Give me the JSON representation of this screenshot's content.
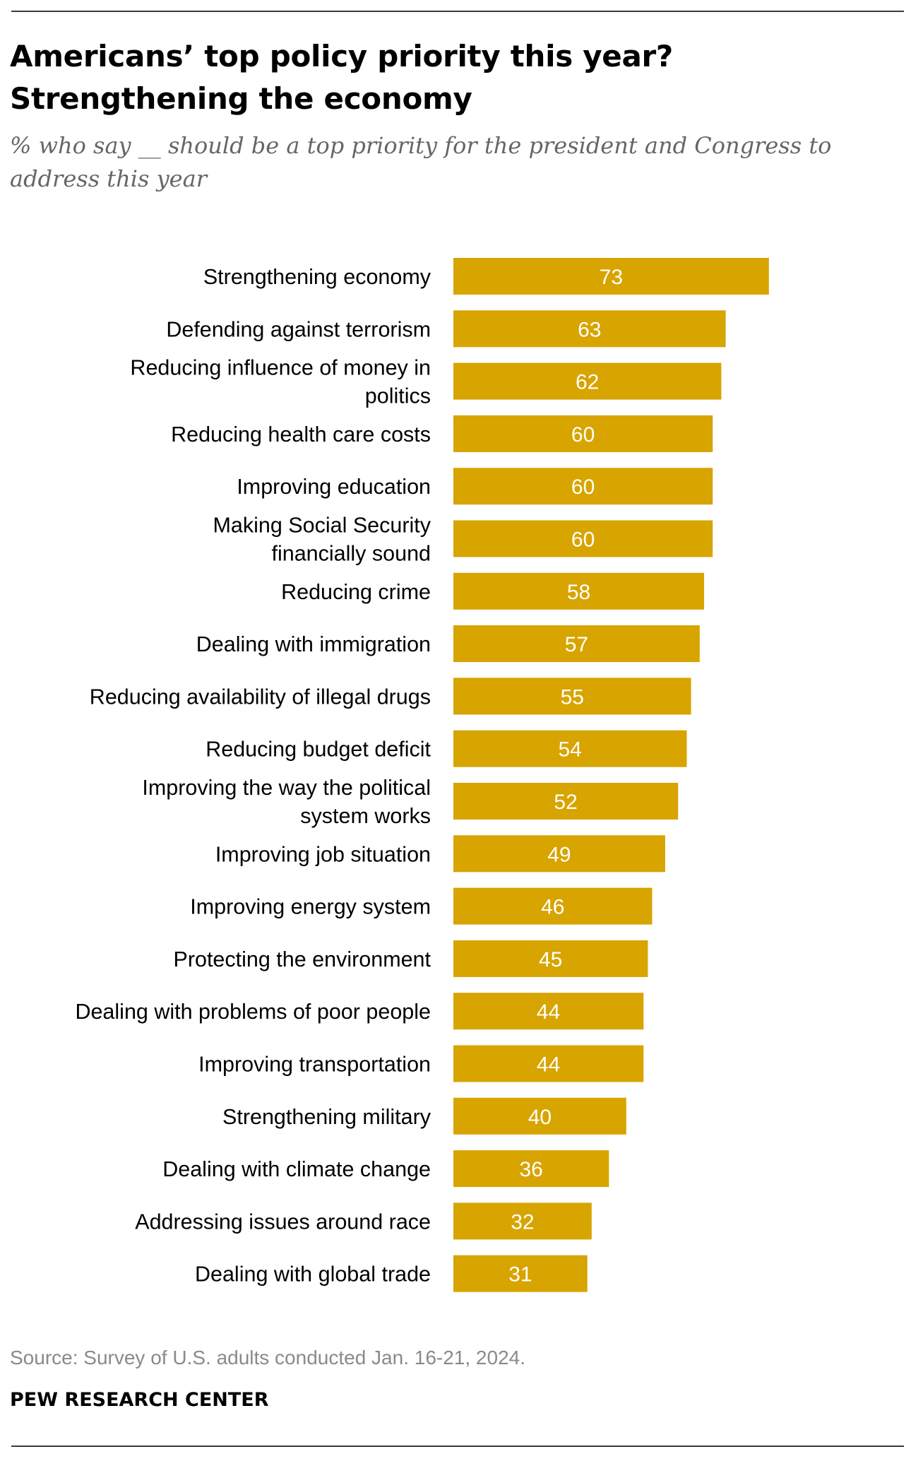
{
  "header": {
    "title": "Americans’ top policy priority this year? Strengthening the economy",
    "subtitle": "% who say __ should be a top priority for the president and Congress to address this year"
  },
  "footer": {
    "source": "Source: Survey of U.S. adults conducted Jan. 16-21, 2024.",
    "brand": "PEW RESEARCH CENTER"
  },
  "colors": {
    "bar": "#D7A400",
    "value_text": "#FFFFFF"
  },
  "chart_data": {
    "type": "bar",
    "orientation": "horizontal",
    "title": "Americans’ top policy priority this year? Strengthening the economy",
    "subtitle": "% who say __ should be a top priority for the president and Congress to address this year",
    "xlabel": "",
    "ylabel": "",
    "xlim": [
      0,
      100
    ],
    "grid": false,
    "legend": "none",
    "categories": [
      [
        "Strengthening economy"
      ],
      [
        "Defending against terrorism"
      ],
      [
        "Reducing influence of money in",
        "politics"
      ],
      [
        "Reducing health care costs"
      ],
      [
        "Improving education"
      ],
      [
        "Making Social Security",
        "financially sound"
      ],
      [
        "Reducing crime"
      ],
      [
        "Dealing with immigration"
      ],
      [
        "Reducing availability of illegal drugs"
      ],
      [
        "Reducing budget deficit"
      ],
      [
        "Improving the way the political",
        "system works"
      ],
      [
        "Improving job situation"
      ],
      [
        "Improving energy system"
      ],
      [
        "Protecting the environment"
      ],
      [
        "Dealing with problems of poor people"
      ],
      [
        "Improving transportation"
      ],
      [
        "Strengthening military"
      ],
      [
        "Dealing with climate change"
      ],
      [
        "Addressing issues around race"
      ],
      [
        "Dealing with global trade"
      ]
    ],
    "values": [
      73,
      63,
      62,
      60,
      60,
      60,
      58,
      57,
      55,
      54,
      52,
      49,
      46,
      45,
      44,
      44,
      40,
      36,
      32,
      31
    ]
  }
}
